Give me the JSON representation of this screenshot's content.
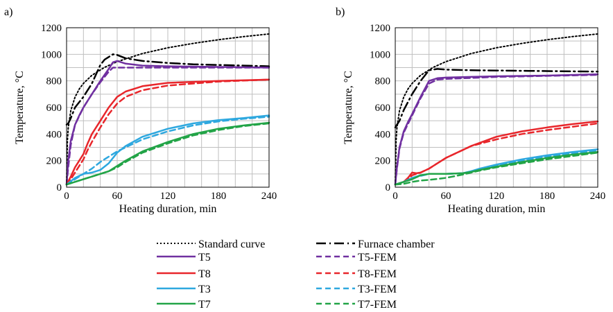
{
  "legend": [
    {
      "label": "Standard curve",
      "color": "#000000",
      "dash": "dot",
      "width": 2
    },
    {
      "label": "Furnace chamber",
      "color": "#000000",
      "dash": "dashdot",
      "width": 2.5
    },
    {
      "label": "T5",
      "color": "#7030A0",
      "dash": "solid",
      "width": 2.5
    },
    {
      "label": "T5-FEM",
      "color": "#7030A0",
      "dash": "dash",
      "width": 2.5
    },
    {
      "label": "T8",
      "color": "#E8262B",
      "dash": "solid",
      "width": 2.5
    },
    {
      "label": "T8-FEM",
      "color": "#E8262B",
      "dash": "dash",
      "width": 2.5
    },
    {
      "label": "T3",
      "color": "#2EA8DF",
      "dash": "solid",
      "width": 2.5
    },
    {
      "label": "T3-FEM",
      "color": "#2EA8DF",
      "dash": "dash",
      "width": 2.5
    },
    {
      "label": "T7",
      "color": "#22A447",
      "dash": "solid",
      "width": 2.5
    },
    {
      "label": "T7-FEM",
      "color": "#22A447",
      "dash": "dash",
      "width": 2.5
    }
  ],
  "chart_data": [
    {
      "panel_label": "a)",
      "type": "line",
      "xlabel": "Heating duration,  min",
      "ylabel": "Temperature,  °C",
      "xlim": [
        0,
        240
      ],
      "ylim": [
        0,
        1200
      ],
      "xticks": [
        0,
        60,
        120,
        180,
        240
      ],
      "yticks": [
        0,
        200,
        400,
        600,
        800,
        1000,
        1200
      ],
      "grid": true,
      "series": [
        {
          "name": "Standard curve",
          "x": [
            0,
            1,
            2,
            5,
            10,
            15,
            20,
            30,
            45,
            60,
            90,
            120,
            150,
            180,
            210,
            240
          ],
          "y": [
            20,
            349,
            445,
            576,
            678,
            739,
            781,
            842,
            902,
            945,
            1006,
            1049,
            1082,
            1110,
            1133,
            1153
          ]
        },
        {
          "name": "Furnace chamber",
          "x": [
            0,
            2,
            5,
            10,
            20,
            30,
            40,
            45,
            50,
            55,
            60,
            70,
            90,
            120,
            150,
            180,
            210,
            240
          ],
          "y": [
            470,
            480,
            520,
            600,
            680,
            780,
            920,
            960,
            980,
            1000,
            995,
            970,
            950,
            935,
            925,
            920,
            915,
            910
          ]
        },
        {
          "name": "T5",
          "x": [
            0,
            2,
            5,
            10,
            15,
            20,
            30,
            40,
            50,
            55,
            60,
            70,
            90,
            120,
            180,
            240
          ],
          "y": [
            20,
            200,
            350,
            470,
            540,
            600,
            700,
            800,
            890,
            940,
            950,
            930,
            915,
            910,
            905,
            900
          ]
        },
        {
          "name": "T5-FEM",
          "x": [
            0,
            2,
            5,
            10,
            20,
            30,
            40,
            50,
            55,
            60,
            90,
            120,
            180,
            240
          ],
          "y": [
            20,
            150,
            320,
            470,
            600,
            700,
            790,
            870,
            900,
            900,
            900,
            900,
            900,
            900
          ]
        },
        {
          "name": "T8",
          "x": [
            0,
            5,
            10,
            15,
            20,
            25,
            30,
            40,
            50,
            60,
            70,
            90,
            120,
            180,
            240
          ],
          "y": [
            20,
            80,
            150,
            200,
            250,
            330,
            400,
            500,
            600,
            680,
            720,
            760,
            785,
            800,
            810
          ]
        },
        {
          "name": "T8-FEM",
          "x": [
            0,
            5,
            10,
            15,
            20,
            25,
            30,
            40,
            50,
            60,
            70,
            90,
            120,
            180,
            240
          ],
          "y": [
            20,
            60,
            110,
            160,
            210,
            280,
            340,
            450,
            550,
            630,
            680,
            730,
            765,
            795,
            810
          ]
        },
        {
          "name": "T3",
          "x": [
            0,
            10,
            20,
            30,
            40,
            50,
            60,
            70,
            90,
            120,
            150,
            180,
            210,
            240
          ],
          "y": [
            20,
            70,
            100,
            110,
            130,
            180,
            260,
            310,
            380,
            440,
            480,
            505,
            520,
            540
          ]
        },
        {
          "name": "T3-FEM",
          "x": [
            0,
            10,
            20,
            30,
            40,
            50,
            60,
            70,
            90,
            120,
            150,
            180,
            210,
            240
          ],
          "y": [
            20,
            60,
            100,
            140,
            190,
            230,
            270,
            300,
            360,
            420,
            465,
            495,
            515,
            530
          ]
        },
        {
          "name": "T7",
          "x": [
            0,
            10,
            20,
            30,
            40,
            50,
            60,
            70,
            90,
            120,
            150,
            180,
            210,
            240
          ],
          "y": [
            20,
            40,
            60,
            80,
            100,
            120,
            160,
            200,
            270,
            340,
            400,
            440,
            465,
            485
          ]
        },
        {
          "name": "T7-FEM",
          "x": [
            0,
            10,
            20,
            30,
            40,
            50,
            60,
            70,
            90,
            120,
            150,
            180,
            210,
            240
          ],
          "y": [
            20,
            40,
            60,
            80,
            100,
            120,
            150,
            190,
            260,
            330,
            390,
            430,
            460,
            480
          ]
        }
      ]
    },
    {
      "panel_label": "b)",
      "type": "line",
      "xlabel": "Heating duration,  min",
      "ylabel": "Temperature,  °C",
      "xlim": [
        0,
        240
      ],
      "ylim": [
        0,
        1200
      ],
      "xticks": [
        0,
        60,
        120,
        180,
        240
      ],
      "yticks": [
        0,
        200,
        400,
        600,
        800,
        1000,
        1200
      ],
      "grid": true,
      "series": [
        {
          "name": "Standard curve",
          "x": [
            0,
            1,
            2,
            5,
            10,
            15,
            20,
            30,
            45,
            60,
            90,
            120,
            150,
            180,
            210,
            240
          ],
          "y": [
            20,
            349,
            445,
            576,
            678,
            739,
            781,
            842,
            902,
            945,
            1006,
            1049,
            1082,
            1110,
            1133,
            1153
          ]
        },
        {
          "name": "Furnace chamber",
          "x": [
            0,
            2,
            5,
            10,
            20,
            30,
            40,
            50,
            60,
            90,
            120,
            150,
            180,
            210,
            240
          ],
          "y": [
            450,
            470,
            500,
            580,
            700,
            800,
            880,
            890,
            885,
            880,
            878,
            876,
            874,
            872,
            870
          ]
        },
        {
          "name": "T5",
          "x": [
            0,
            2,
            5,
            10,
            15,
            20,
            30,
            40,
            50,
            60,
            90,
            120,
            180,
            240
          ],
          "y": [
            20,
            150,
            300,
            420,
            490,
            550,
            680,
            800,
            820,
            825,
            830,
            835,
            840,
            850
          ]
        },
        {
          "name": "T5-FEM",
          "x": [
            0,
            2,
            5,
            10,
            20,
            30,
            40,
            50,
            60,
            90,
            120,
            180,
            240
          ],
          "y": [
            20,
            140,
            290,
            410,
            540,
            670,
            780,
            810,
            815,
            822,
            830,
            838,
            845
          ]
        },
        {
          "name": "T8",
          "x": [
            0,
            10,
            15,
            20,
            25,
            30,
            40,
            50,
            60,
            90,
            120,
            150,
            180,
            210,
            240
          ],
          "y": [
            20,
            40,
            70,
            110,
            105,
            110,
            140,
            180,
            220,
            310,
            380,
            420,
            450,
            475,
            495
          ]
        },
        {
          "name": "T8-FEM",
          "x": [
            0,
            10,
            15,
            20,
            25,
            30,
            40,
            50,
            60,
            90,
            120,
            150,
            180,
            210,
            240
          ],
          "y": [
            20,
            40,
            60,
            90,
            100,
            110,
            140,
            180,
            220,
            310,
            360,
            400,
            430,
            455,
            480
          ]
        },
        {
          "name": "T3",
          "x": [
            0,
            10,
            20,
            30,
            40,
            60,
            80,
            90,
            100,
            120,
            150,
            180,
            210,
            240
          ],
          "y": [
            20,
            40,
            70,
            90,
            100,
            100,
            105,
            120,
            140,
            170,
            210,
            240,
            265,
            285
          ]
        },
        {
          "name": "T3-FEM",
          "x": [
            0,
            10,
            20,
            30,
            40,
            60,
            80,
            90,
            100,
            120,
            150,
            180,
            210,
            240
          ],
          "y": [
            20,
            40,
            65,
            85,
            100,
            100,
            105,
            120,
            135,
            165,
            200,
            230,
            255,
            275
          ]
        },
        {
          "name": "T7",
          "x": [
            0,
            10,
            20,
            30,
            40,
            60,
            80,
            90,
            100,
            120,
            150,
            180,
            210,
            240
          ],
          "y": [
            20,
            40,
            60,
            90,
            100,
            100,
            105,
            115,
            130,
            155,
            190,
            220,
            245,
            265
          ]
        },
        {
          "name": "T7-FEM",
          "x": [
            0,
            10,
            20,
            30,
            40,
            60,
            80,
            90,
            100,
            120,
            150,
            180,
            210,
            240
          ],
          "y": [
            20,
            25,
            40,
            50,
            55,
            70,
            95,
            110,
            125,
            150,
            180,
            210,
            235,
            260
          ]
        }
      ]
    }
  ]
}
